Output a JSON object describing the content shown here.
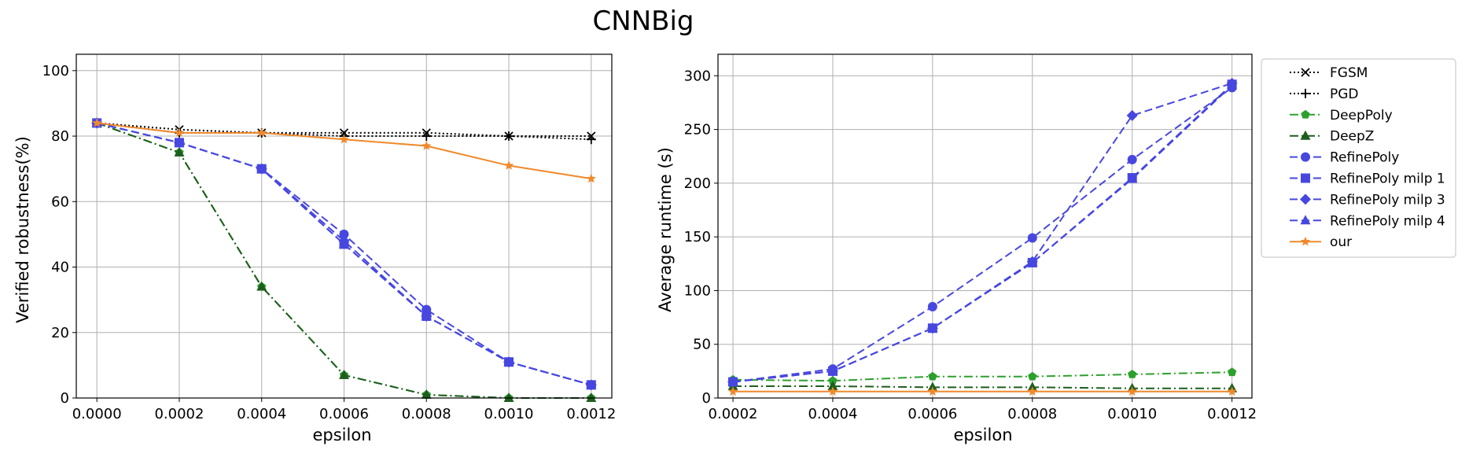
{
  "figure": {
    "title": "CNNBig"
  },
  "chart_data": [
    {
      "type": "line",
      "title": "",
      "xlabel": "epsilon",
      "ylabel": "Verified robustness(%)",
      "xlim": [
        -5e-05,
        0.00125
      ],
      "ylim": [
        0,
        105
      ],
      "xticks": [
        0,
        0.0002,
        0.0004,
        0.0006,
        0.0008,
        0.001,
        0.0012
      ],
      "xtick_labels": [
        "0.0000",
        "0.0002",
        "0.0004",
        "0.0006",
        "0.0008",
        "0.0010",
        "0.0012"
      ],
      "yticks": [
        0,
        20,
        40,
        60,
        80,
        100
      ],
      "ytick_labels": [
        "0",
        "20",
        "40",
        "60",
        "80",
        "100"
      ],
      "grid": true,
      "x": [
        0,
        0.0002,
        0.0004,
        0.0006,
        0.0008,
        0.001,
        0.0012
      ],
      "series": [
        {
          "name": "FGSM",
          "values": [
            84,
            82,
            81,
            81,
            81,
            80,
            80
          ],
          "color": "#000000",
          "dash": "dotted",
          "marker": "x"
        },
        {
          "name": "PGD",
          "values": [
            84,
            81,
            81,
            80,
            80,
            80,
            79
          ],
          "color": "#000000",
          "dash": "dotted",
          "marker": "+"
        },
        {
          "name": "DeepPoly",
          "values": [
            84,
            75,
            34,
            7,
            1,
            0,
            0
          ],
          "color": "#2ca02c",
          "dash": "dashdot",
          "marker": "pentagon"
        },
        {
          "name": "DeepZ",
          "values": [
            84,
            75,
            34,
            7,
            1,
            0,
            0
          ],
          "color": "#1d5e1d",
          "dash": "dashdot",
          "marker": "triangle"
        },
        {
          "name": "RefinePoly",
          "values": [
            84,
            78,
            70,
            50,
            27,
            11,
            4
          ],
          "color": "#4747e0",
          "dash": "dashed",
          "marker": "circle"
        },
        {
          "name": "RefinePoly milp 1",
          "values": [
            84,
            78,
            70,
            47,
            25,
            11,
            4
          ],
          "color": "#4747e0",
          "dash": "dashed",
          "marker": "square"
        },
        {
          "name": "RefinePoly milp 3",
          "values": [
            84,
            78,
            70,
            48,
            25,
            11,
            4
          ],
          "color": "#4747e0",
          "dash": "dashed",
          "marker": "diamond"
        },
        {
          "name": "RefinePoly milp 4",
          "values": [
            84,
            78,
            70,
            47,
            25,
            11,
            4
          ],
          "color": "#4747e0",
          "dash": "dashed",
          "marker": "triangle"
        },
        {
          "name": "our",
          "values": [
            84,
            81,
            81,
            79,
            77,
            71,
            67
          ],
          "color": "#f0892b",
          "dash": "solid",
          "marker": "star"
        }
      ]
    },
    {
      "type": "line",
      "title": "",
      "xlabel": "epsilon",
      "ylabel": "Average runtime (s)",
      "xlim": [
        0.00017,
        0.00124
      ],
      "ylim": [
        0,
        320
      ],
      "xticks": [
        0.0002,
        0.0004,
        0.0006,
        0.0008,
        0.001,
        0.0012
      ],
      "xtick_labels": [
        "0.0002",
        "0.0004",
        "0.0006",
        "0.0008",
        "0.0010",
        "0.0012"
      ],
      "yticks": [
        0,
        50,
        100,
        150,
        200,
        250,
        300
      ],
      "ytick_labels": [
        "0",
        "50",
        "100",
        "150",
        "200",
        "250",
        "300"
      ],
      "grid": true,
      "x": [
        0.0002,
        0.0004,
        0.0006,
        0.0008,
        0.001,
        0.0012
      ],
      "series": [
        {
          "name": "DeepPoly",
          "values": [
            17,
            16,
            20,
            20,
            22,
            24
          ],
          "color": "#2ca02c",
          "dash": "dashdot",
          "marker": "pentagon"
        },
        {
          "name": "DeepZ",
          "values": [
            11,
            11,
            10,
            10,
            9,
            9
          ],
          "color": "#1d5e1d",
          "dash": "dashdot",
          "marker": "triangle"
        },
        {
          "name": "RefinePoly",
          "values": [
            15,
            27,
            85,
            149,
            222,
            289
          ],
          "color": "#4747e0",
          "dash": "dashed",
          "marker": "circle"
        },
        {
          "name": "RefinePoly milp 1",
          "values": [
            15,
            25,
            65,
            126,
            205,
            292
          ],
          "color": "#4747e0",
          "dash": "dashed",
          "marker": "square"
        },
        {
          "name": "RefinePoly milp 3",
          "values": [
            15,
            25,
            65,
            127,
            263,
            293
          ],
          "color": "#4747e0",
          "dash": "dashed",
          "marker": "diamond"
        },
        {
          "name": "RefinePoly milp 4",
          "values": [
            15,
            25,
            65,
            126,
            204,
            291
          ],
          "color": "#4747e0",
          "dash": "dashed",
          "marker": "triangle"
        },
        {
          "name": "our",
          "values": [
            6,
            6,
            6,
            6,
            6,
            6
          ],
          "color": "#f0892b",
          "dash": "solid",
          "marker": "star"
        }
      ]
    }
  ],
  "legend": {
    "placement": "right",
    "entries": [
      {
        "name": "FGSM",
        "color": "#000000",
        "dash": "dotted",
        "marker": "x"
      },
      {
        "name": "PGD",
        "color": "#000000",
        "dash": "dotted",
        "marker": "+"
      },
      {
        "name": "DeepPoly",
        "color": "#2ca02c",
        "dash": "dashdot",
        "marker": "pentagon"
      },
      {
        "name": "DeepZ",
        "color": "#1d5e1d",
        "dash": "dashdot",
        "marker": "triangle"
      },
      {
        "name": "RefinePoly",
        "color": "#4747e0",
        "dash": "dashed",
        "marker": "circle"
      },
      {
        "name": "RefinePoly milp 1",
        "color": "#4747e0",
        "dash": "dashed",
        "marker": "square"
      },
      {
        "name": "RefinePoly milp 3",
        "color": "#4747e0",
        "dash": "dashed",
        "marker": "diamond"
      },
      {
        "name": "RefinePoly milp 4",
        "color": "#4747e0",
        "dash": "dashed",
        "marker": "triangle"
      },
      {
        "name": "our",
        "color": "#f0892b",
        "dash": "solid",
        "marker": "star"
      }
    ]
  }
}
